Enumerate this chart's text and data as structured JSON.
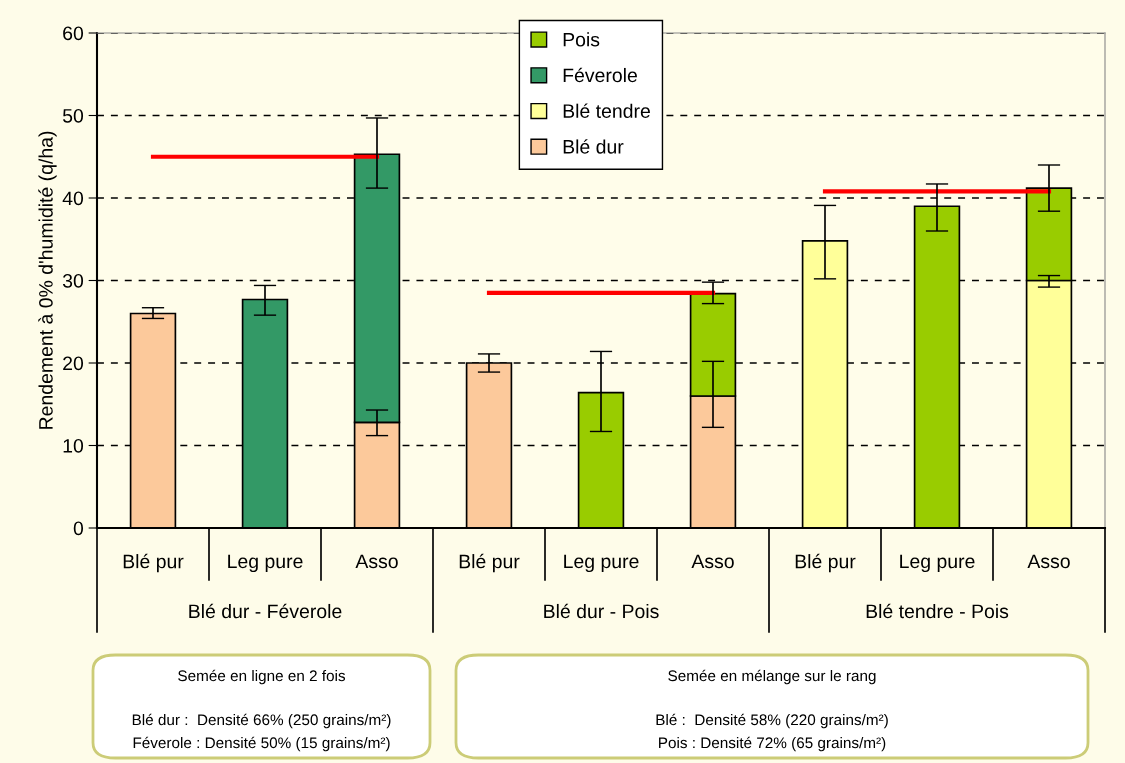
{
  "chart_data": {
    "type": "bar",
    "stacked": true,
    "ylabel": "Rendement à 0% d'humidité (q/ha)",
    "categories": [
      "Blé pur",
      "Leg pure",
      "Asso",
      "Blé pur",
      "Leg pure",
      "Asso",
      "Blé pur",
      "Leg pure",
      "Asso"
    ],
    "series": [
      {
        "name": "Blé dur",
        "color": "#fcc99b",
        "values": [
          26,
          null,
          12.8,
          20,
          null,
          16,
          null,
          null,
          null
        ],
        "errors": [
          [
            25.4,
            26.7
          ],
          null,
          [
            11.2,
            14.3
          ],
          [
            18.9,
            21.1
          ],
          null,
          [
            12.2,
            20.2
          ],
          null,
          null,
          null
        ]
      },
      {
        "name": "Blé tendre",
        "color": "#ffff99",
        "values": [
          null,
          null,
          null,
          null,
          null,
          null,
          34.8,
          null,
          30
        ],
        "errors": [
          null,
          null,
          null,
          null,
          null,
          null,
          [
            30.2,
            39.1
          ],
          null,
          [
            29.2,
            30.6
          ]
        ]
      },
      {
        "name": "Féverole",
        "color": "#339966",
        "values": [
          null,
          27.7,
          32.5,
          null,
          null,
          null,
          null,
          null,
          null
        ],
        "errors": [
          null,
          [
            25.8,
            29.4
          ],
          [
            41.2,
            49.7
          ],
          null,
          null,
          null,
          null,
          null,
          null
        ]
      },
      {
        "name": "Pois",
        "color": "#99cc00",
        "values": [
          null,
          null,
          null,
          null,
          16.4,
          12.4,
          null,
          39,
          11.2
        ],
        "errors": [
          null,
          null,
          null,
          null,
          [
            11.7,
            21.4
          ],
          [
            27.2,
            29.8
          ],
          null,
          [
            36,
            41.7
          ],
          [
            38.4,
            44
          ]
        ]
      },
      {
        "type": "line",
        "color": "#ff0000",
        "values": [
          45,
          45,
          45,
          null,
          null,
          null,
          null,
          null,
          null
        ]
      },
      {
        "type": "line",
        "color": "#ff0000",
        "values": [
          null,
          null,
          null,
          28.5,
          28.5,
          28.5,
          null,
          null,
          null
        ]
      },
      {
        "type": "line",
        "color": "#ff0000",
        "values": [
          null,
          null,
          null,
          null,
          null,
          null,
          40.8,
          40.8,
          40.8
        ]
      }
    ],
    "ylim": [
      0,
      60
    ],
    "yticks": [
      0,
      10,
      20,
      30,
      40,
      50,
      60
    ],
    "grid": "y",
    "legend": "top",
    "annotations": [
      "Blé dur - Féverole",
      "Blé dur - Pois",
      "Blé tendre - Pois",
      "Semée en ligne en 2 fois",
      "Blé dur :  Densité 66% (250 grains/m²)",
      "Féverole : Densité 50% (15 grains/m²)",
      "Semée en mélange sur le rang",
      "Blé :  Densité 58% (220 grains/m²)",
      "Pois : Densité 72% (65 grains/m²)"
    ]
  }
}
